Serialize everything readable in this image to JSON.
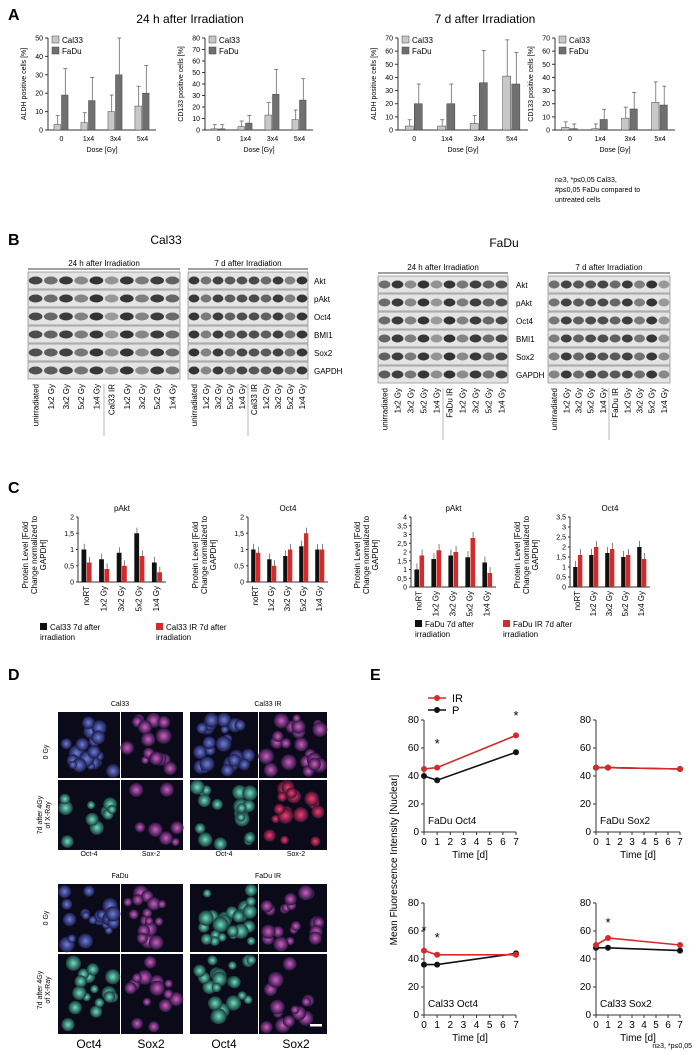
{
  "panel_a": {
    "letter": "A",
    "left_title": "24 h after Irradiation",
    "right_title": "7 d after Irradiation",
    "footnote": [
      "n≥3, *p≤0,05 Cal33,",
      "#p≤0,05 FaDu compared to",
      "untreated cells"
    ]
  },
  "panel_b": {
    "letter": "B",
    "cal33_title": "Cal33",
    "fadu_title": "FaDu",
    "blot_24h": "24 h after Irradiation",
    "blot_7d": "7 d after Irradiation",
    "proteins": [
      "Akt",
      "pAkt",
      "Oct4",
      "BMI1",
      "Sox2",
      "GAPDH"
    ],
    "lanes_cal33_24h": [
      "unirradiated",
      "1x2 Gy",
      "3x2 Gy",
      "5x2 Gy",
      "1x4 Gy",
      "Cal33 IR",
      "1x2 Gy",
      "3x2 Gy",
      "5x2 Gy",
      "1x4 Gy"
    ],
    "lanes_fadu_24h": [
      "unirradiated",
      "1x2 Gy",
      "3x2 Gy",
      "5x2 Gy",
      "1x4 Gy",
      "FaDu IR",
      "1x2 Gy",
      "3x2 Gy",
      "5x2 Gy",
      "1x4 Gy"
    ]
  },
  "panel_c": {
    "letter": "C",
    "ylabel": [
      "Protein Level [Fold",
      "Change normalized to",
      "GAPDH]"
    ],
    "legend_cal33": [
      "Cal33 7d after",
      "irradiation"
    ],
    "legend_cal33_ir": [
      "Cal33 IR 7d after",
      "irradiation"
    ],
    "legend_fadu": [
      "FaDu  7d after",
      "irradiation"
    ],
    "legend_fadu_ir": [
      "FaDu IR 7d after",
      "irradiation"
    ]
  },
  "panel_d": {
    "letter": "D",
    "top_left": "Cal33",
    "top_right": "Cal33 IR",
    "bottom_left": "FaDu",
    "bottom_right": "FaDu IR",
    "row_0gy": "0 Gy",
    "row_7d": [
      "7d after 4Gy",
      "of X-Ray"
    ],
    "col_oct4": "Oct-4",
    "col_sox2": "Sox-2",
    "big_oct4": "Oct4",
    "big_sox2": "Sox2"
  },
  "panel_e": {
    "letter": "E",
    "ylabel": "Mean Fluorescence Intensity [Nuclear]",
    "xlabel": "Time [d]",
    "legend_ir": "IR",
    "legend_p": "P",
    "footnote": "n≥3, *p≤0,05"
  },
  "colors": {
    "red": "#d42a2a",
    "black": "#111111",
    "light_bar": "#c8c8c8",
    "dark_bar": "#707070"
  },
  "chart_data": [
    {
      "type": "bar",
      "title": "24 h after Irradiation",
      "categories": [
        "0",
        "1x4",
        "3x4",
        "5x4"
      ],
      "xlabel": "Dose [Gy]",
      "ylabel": "ALDH positive cells [%]",
      "ylim": [
        0,
        50
      ],
      "series": [
        {
          "name": "Cal33",
          "values": [
            3,
            4,
            10,
            13
          ]
        },
        {
          "name": "FaDu",
          "values": [
            19,
            16,
            30,
            20
          ]
        }
      ]
    },
    {
      "type": "bar",
      "title": "24 h after Irradiation",
      "categories": [
        "0",
        "1x4",
        "3x4",
        "5x4"
      ],
      "xlabel": "Dose [Gy]",
      "ylabel": "CD133 positive cells [%]",
      "ylim": [
        0,
        80
      ],
      "series": [
        {
          "name": "Cal33",
          "values": [
            1,
            3,
            13,
            9
          ]
        },
        {
          "name": "FaDu",
          "values": [
            1,
            6,
            31,
            26
          ]
        }
      ]
    },
    {
      "type": "bar",
      "title": "7 d after Irradiation",
      "categories": [
        "0",
        "1x4",
        "3x4",
        "5x4"
      ],
      "xlabel": "Dose [Gy]",
      "ylabel": "ALDH positive cells [%]",
      "ylim": [
        0,
        70
      ],
      "series": [
        {
          "name": "Cal33",
          "values": [
            3,
            3,
            5,
            41
          ]
        },
        {
          "name": "FaDu",
          "values": [
            20,
            20,
            36,
            35
          ]
        }
      ]
    },
    {
      "type": "bar",
      "title": "7 d after Irradiation",
      "categories": [
        "0",
        "1x4",
        "3x4",
        "5x4"
      ],
      "xlabel": "Dose [Gy]",
      "ylabel": "CD133 positive cells [%]",
      "ylim": [
        0,
        70
      ],
      "series": [
        {
          "name": "Cal33",
          "values": [
            2,
            1,
            9,
            21
          ]
        },
        {
          "name": "FaDu",
          "values": [
            1,
            8,
            16,
            19
          ]
        }
      ]
    },
    {
      "type": "bar",
      "title": "pAkt",
      "categories": [
        "noRT",
        "1x2 Gy",
        "3x2 Gy",
        "5x2 Gy",
        "1x4 Gy"
      ],
      "ylim": [
        0,
        2
      ],
      "yticks": [
        "0",
        "0,5",
        "1",
        "1,5",
        "2"
      ],
      "series": [
        {
          "name": "Cal33 7d after irradiation",
          "values": [
            1.0,
            0.7,
            0.9,
            1.5,
            0.6
          ]
        },
        {
          "name": "Cal33 IR 7d after irradiation",
          "values": [
            0.6,
            0.4,
            0.5,
            0.8,
            0.3
          ]
        }
      ]
    },
    {
      "type": "bar",
      "title": "Oct4",
      "categories": [
        "noRT",
        "1x2 Gy",
        "3x2 Gy",
        "5x2 Gy",
        "1x4 Gy"
      ],
      "ylim": [
        0,
        2
      ],
      "yticks": [
        "0",
        "0,5",
        "1",
        "1,5",
        "2"
      ],
      "series": [
        {
          "name": "Cal33 7d after irradiation",
          "values": [
            1.0,
            0.7,
            0.8,
            1.1,
            1.0
          ]
        },
        {
          "name": "Cal33 IR 7d after irradiation",
          "values": [
            0.9,
            0.5,
            1.0,
            1.5,
            1.0
          ]
        }
      ]
    },
    {
      "type": "bar",
      "title": "pAkt",
      "categories": [
        "noRT",
        "1x2 Gy",
        "3x2 Gy",
        "5x2 Gy",
        "1x4 Gy"
      ],
      "ylim": [
        0,
        4
      ],
      "yticks": [
        "0",
        "0,5",
        "1",
        "1,5",
        "2",
        "2,5",
        "3",
        "3,5",
        "4"
      ],
      "series": [
        {
          "name": "FaDu 7d after irradiation",
          "values": [
            1.0,
            1.6,
            1.8,
            1.7,
            1.4
          ]
        },
        {
          "name": "FaDu IR 7d after irradiation",
          "values": [
            1.8,
            2.1,
            2.0,
            2.8,
            0.8
          ]
        }
      ]
    },
    {
      "type": "bar",
      "title": "Oct4",
      "categories": [
        "noRT",
        "1x2 Gy",
        "3x2 Gy",
        "5x2 Gy",
        "1x4 Gy"
      ],
      "ylim": [
        0,
        3.5
      ],
      "yticks": [
        "0",
        "0,5",
        "1",
        "1,5",
        "2",
        "2,5",
        "3",
        "3,5"
      ],
      "series": [
        {
          "name": "FaDu 7d after irradiation",
          "values": [
            1.0,
            1.6,
            1.7,
            1.5,
            2.0
          ]
        },
        {
          "name": "FaDu IR 7d after irradiation",
          "values": [
            1.6,
            2.0,
            1.9,
            1.6,
            1.4
          ]
        }
      ]
    },
    {
      "type": "line",
      "title": "FaDu Oct4",
      "x": [
        0,
        1,
        7
      ],
      "xticks": [
        "0",
        "1",
        "2",
        "3",
        "4",
        "5",
        "6",
        "7"
      ],
      "xlabel": "Time [d]",
      "ylim": [
        0,
        80
      ],
      "yticks": [
        "0",
        "20",
        "40",
        "60",
        "80"
      ],
      "series": [
        {
          "name": "IR",
          "values": [
            45,
            46,
            69
          ]
        },
        {
          "name": "P",
          "values": [
            40,
            37,
            57
          ]
        }
      ]
    },
    {
      "type": "line",
      "title": "FaDu Sox2",
      "x": [
        0,
        1,
        7
      ],
      "xticks": [
        "0",
        "1",
        "2",
        "3",
        "4",
        "5",
        "6",
        "7"
      ],
      "xlabel": "Time [d]",
      "ylim": [
        0,
        80
      ],
      "yticks": [
        "0",
        "20",
        "40",
        "60",
        "80"
      ],
      "series": [
        {
          "name": "IR",
          "values": [
            46,
            46,
            45
          ]
        },
        {
          "name": "P",
          "values": [
            46,
            46,
            45
          ]
        }
      ]
    },
    {
      "type": "line",
      "title": "Cal33 Oct4",
      "x": [
        0,
        1,
        7
      ],
      "xticks": [
        "0",
        "1",
        "2",
        "3",
        "4",
        "5",
        "6",
        "7"
      ],
      "xlabel": "Time [d]",
      "ylim": [
        0,
        80
      ],
      "yticks": [
        "0",
        "20",
        "40",
        "60",
        "80"
      ],
      "series": [
        {
          "name": "IR",
          "values": [
            46,
            43,
            43
          ]
        },
        {
          "name": "P",
          "values": [
            36,
            36,
            44
          ]
        }
      ]
    },
    {
      "type": "line",
      "title": "Cal33 Sox2",
      "x": [
        0,
        1,
        7
      ],
      "xticks": [
        "0",
        "1",
        "2",
        "3",
        "4",
        "5",
        "6",
        "7"
      ],
      "xlabel": "Time [d]",
      "ylim": [
        0,
        80
      ],
      "yticks": [
        "0",
        "20",
        "40",
        "60",
        "80"
      ],
      "series": [
        {
          "name": "IR",
          "values": [
            50,
            55,
            50
          ]
        },
        {
          "name": "P",
          "values": [
            48,
            48,
            46
          ]
        }
      ]
    }
  ]
}
